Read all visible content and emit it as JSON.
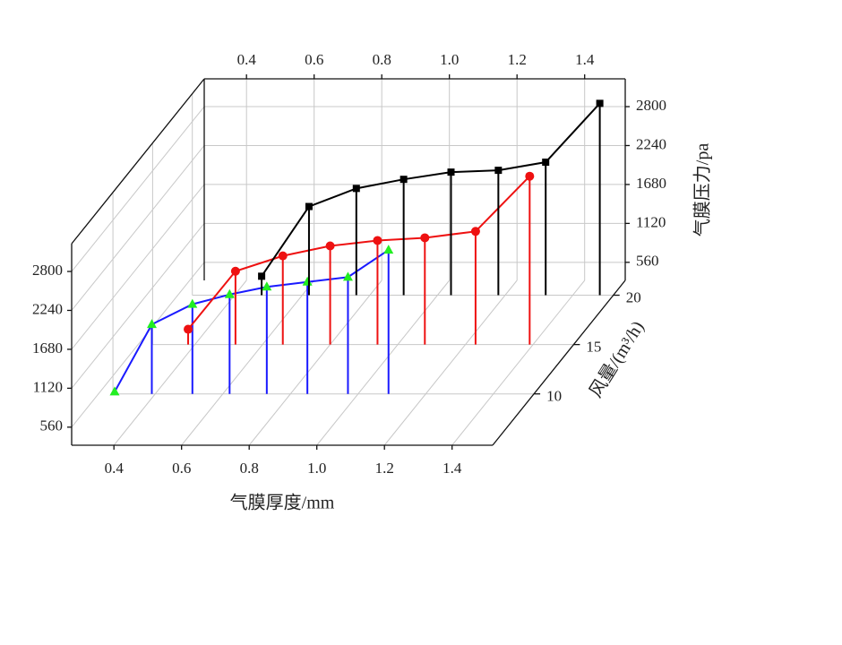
{
  "chart_data": {
    "type": "stem3d",
    "x_label": "气膜厚度/mm",
    "y_label": "气膜压力/pa",
    "z_label": "风量/(m³/h)",
    "xlim": [
      0.275,
      1.52
    ],
    "xticks": [
      0.4,
      0.6,
      0.8,
      {
        "value": 1,
        "label": "1.0"
      },
      1.2,
      1.4
    ],
    "ylim": [
      300,
      3200
    ],
    "yticks": [
      560,
      1120,
      1680,
      2240,
      2800
    ],
    "zlim": [
      4.8,
      21.5
    ],
    "zticks": [
      10,
      15,
      20
    ],
    "grid": true,
    "series": [
      {
        "z": 10,
        "color": "#1a1aff",
        "marker": "triangle",
        "marker_color": "#22ee22",
        "x": [
          0.28,
          0.39,
          0.51,
          0.62,
          0.73,
          0.85,
          0.97,
          1.09
        ],
        "values": [
          330,
          1300,
          1590,
          1730,
          1840,
          1910,
          1980,
          2370
        ]
      },
      {
        "z": 15,
        "color": "#ee1111",
        "marker": "circle",
        "marker_color": "#ee1111",
        "x": [
          0.38,
          0.52,
          0.66,
          0.8,
          0.94,
          1.08,
          1.23,
          1.39
        ],
        "values": [
          520,
          1355,
          1576,
          1719,
          1797,
          1836,
          1928,
          2722
        ]
      },
      {
        "z": 20,
        "color": "#000000",
        "marker": "square",
        "marker_color": "#000000",
        "x": [
          0.48,
          0.62,
          0.76,
          0.9,
          1.04,
          1.18,
          1.32,
          1.48
        ],
        "values": [
          573,
          1576,
          1836,
          1967,
          2071,
          2097,
          2214,
          3060
        ]
      }
    ]
  }
}
